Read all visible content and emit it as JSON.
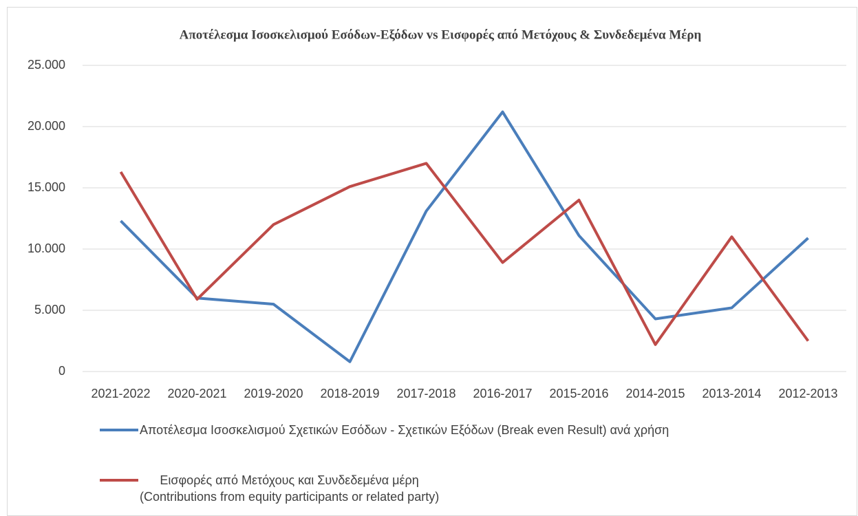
{
  "chart_data": {
    "type": "line",
    "title": "Αποτέλεσμα Ισοσκελισμού Εσόδων-Εξόδων vs Εισφορές από Μετόχους & Συνδεδεμένα Μέρη",
    "categories": [
      "2021-2022",
      "2020-2021",
      "2019-2020",
      "2018-2019",
      "2017-2018",
      "2016-2017",
      "2015-2016",
      "2014-2015",
      "2013-2014",
      "2012-2013"
    ],
    "series": [
      {
        "name": "Αποτέλεσμα Ισοσκελισμού Σχετικών Εσόδων - Σχετικών Εξόδων  (Break even Result) ανά χρήση",
        "color": "#4a7ebb",
        "values": [
          12300,
          6000,
          5500,
          800,
          13100,
          21200,
          11100,
          4300,
          5200,
          10900
        ]
      },
      {
        "name": "Εισφορές από Μετόχους και Συνδεδεμένα μέρη\n(Contributions from equity participants or related party)",
        "color": "#be4b48",
        "values": [
          16300,
          5900,
          12000,
          15100,
          17000,
          8900,
          14000,
          2200,
          11000,
          2500
        ]
      }
    ],
    "ylim": [
      0,
      25000
    ],
    "yticks": [
      0,
      {
        "value": 5000,
        "label": "5.000"
      },
      {
        "value": 10000,
        "label": "10.000"
      },
      {
        "value": 15000,
        "label": "15.000"
      },
      {
        "value": 20000,
        "label": "20.000"
      },
      {
        "value": 25000,
        "label": "25.000"
      }
    ],
    "grid": true
  }
}
